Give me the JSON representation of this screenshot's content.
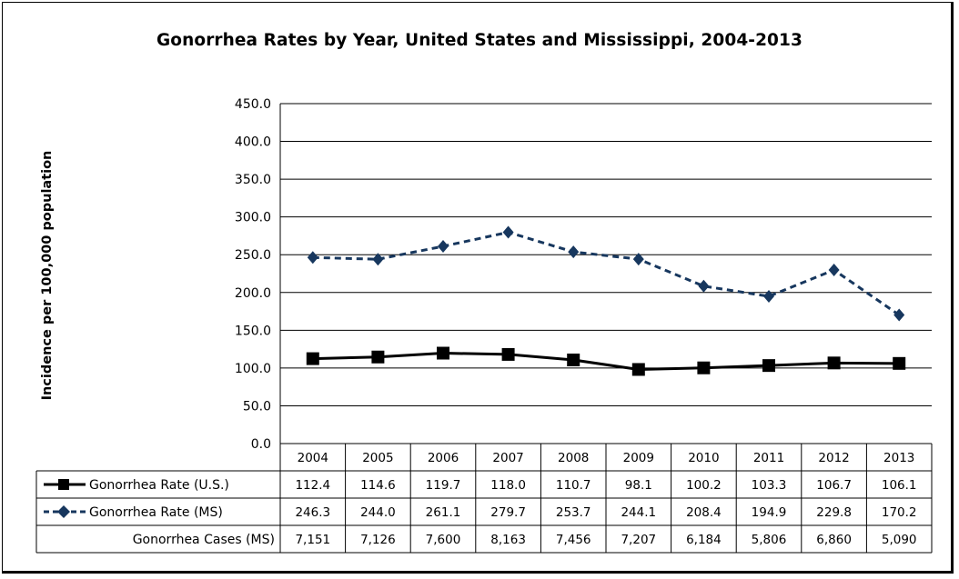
{
  "chart_data": {
    "type": "line",
    "title": "Gonorrhea Rates by Year, United States and Mississippi, 2004-2013",
    "ylabel": "Incidence per 100,000 population",
    "ylim": [
      0,
      450
    ],
    "y_ticks": [
      "0.0",
      "50.0",
      "100.0",
      "150.0",
      "200.0",
      "250.0",
      "300.0",
      "350.0",
      "400.0",
      "450.0"
    ],
    "categories": [
      "2004",
      "2005",
      "2006",
      "2007",
      "2008",
      "2009",
      "2010",
      "2011",
      "2012",
      "2013"
    ],
    "grid": true,
    "legend": "data-table-below",
    "series": [
      {
        "name": "Gonorrhea Rate (U.S.)",
        "marker": "square",
        "line": "solid",
        "color": "#000000",
        "values": [
          112.4,
          114.6,
          119.7,
          118.0,
          110.7,
          98.1,
          100.2,
          103.3,
          106.7,
          106.1
        ],
        "labels": [
          "112.4",
          "114.6",
          "119.7",
          "118.0",
          "110.7",
          "98.1",
          "100.2",
          "103.3",
          "106.7",
          "106.1"
        ]
      },
      {
        "name": "Gonorrhea Rate (MS)",
        "marker": "diamond",
        "line": "dashed",
        "color": "#17375e",
        "values": [
          246.3,
          244.0,
          261.1,
          279.7,
          253.7,
          244.1,
          208.4,
          194.9,
          229.8,
          170.2
        ],
        "labels": [
          "246.3",
          "244.0",
          "261.1",
          "279.7",
          "253.7",
          "244.1",
          "208.4",
          "194.9",
          "229.8",
          "170.2"
        ]
      }
    ],
    "table_rows": [
      {
        "name": "Gonorrhea Cases (MS)",
        "labels": [
          "7,151",
          "7,126",
          "7,600",
          "8,163",
          "7,456",
          "7,207",
          "6,184",
          "5,806",
          "6,860",
          "5,090"
        ]
      }
    ]
  }
}
